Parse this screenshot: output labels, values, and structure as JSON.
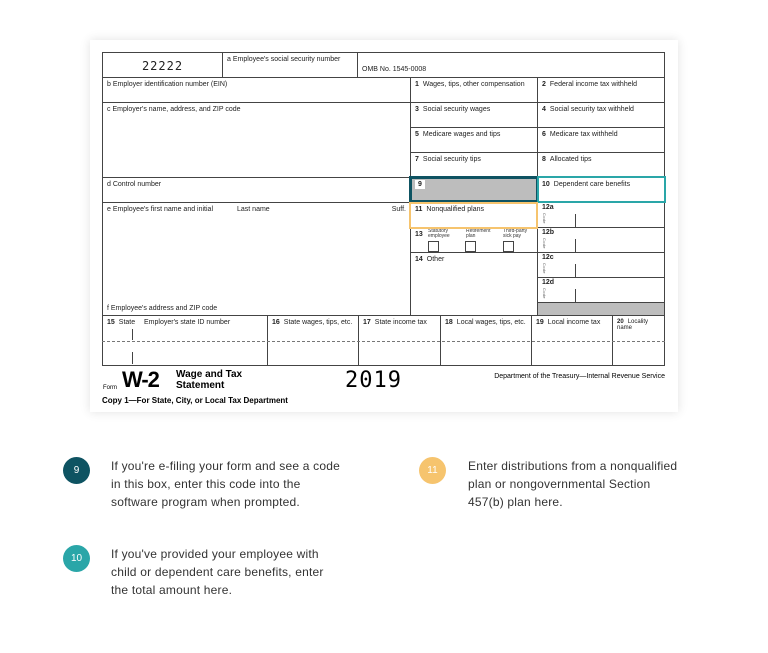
{
  "form": {
    "code": "22222",
    "a": "a  Employee's social security number",
    "omb": "OMB No. 1545-0008",
    "b": "b  Employer identification number (EIN)",
    "c": "c  Employer's name, address, and ZIP code",
    "d": "d  Control number",
    "e_first": "e  Employee's first name and initial",
    "e_last": "Last name",
    "e_suff": "Suff.",
    "f": "f  Employee's address and ZIP code",
    "boxes": {
      "b1": {
        "n": "1",
        "label": "Wages, tips, other compensation"
      },
      "b2": {
        "n": "2",
        "label": "Federal income tax withheld"
      },
      "b3": {
        "n": "3",
        "label": "Social security wages"
      },
      "b4": {
        "n": "4",
        "label": "Social security tax withheld"
      },
      "b5": {
        "n": "5",
        "label": "Medicare wages and tips"
      },
      "b6": {
        "n": "6",
        "label": "Medicare tax withheld"
      },
      "b7": {
        "n": "7",
        "label": "Social security tips"
      },
      "b8": {
        "n": "8",
        "label": "Allocated tips"
      },
      "b9": {
        "n": "9",
        "label": ""
      },
      "b10": {
        "n": "10",
        "label": "Dependent care benefits"
      },
      "b11": {
        "n": "11",
        "label": "Nonqualified plans"
      },
      "b12a": "12a",
      "b12b": "12b",
      "b12c": "12c",
      "b12d": "12d",
      "code_vert": "C o d e",
      "b13": {
        "n": "13",
        "statutory": "Statutory employee",
        "retirement": "Retirement plan",
        "thirdparty": "Third-party sick pay"
      },
      "b14": {
        "n": "14",
        "label": "Other"
      },
      "b15": {
        "n": "15",
        "label": "State",
        "id": "Employer's state ID number"
      },
      "b16": {
        "n": "16",
        "label": "State wages, tips, etc."
      },
      "b17": {
        "n": "17",
        "label": "State income tax"
      },
      "b18": {
        "n": "18",
        "label": "Local wages, tips, etc."
      },
      "b19": {
        "n": "19",
        "label": "Local income tax"
      },
      "b20": {
        "n": "20",
        "label": "Locality name"
      }
    },
    "footer": {
      "form_word": "Form",
      "form_name": "W-2",
      "title_1": "Wage and Tax",
      "title_2": "Statement",
      "year": "2019",
      "dept": "Department of the Treasury—Internal Revenue Service",
      "copy": "Copy 1—For State, City, or Local Tax Department"
    }
  },
  "callouts": [
    {
      "n": "9",
      "color": "#0e5362",
      "lines": [
        "If you're e-filing your form and see a code",
        "in this box, enter this code into the",
        "software program when prompted."
      ]
    },
    {
      "n": "10",
      "color": "#2aa6a8",
      "lines": [
        "If you've provided your employee with",
        "child or dependent care benefits, enter",
        "the total amount here."
      ]
    },
    {
      "n": "11",
      "color": "#f6c46e",
      "lines": [
        "Enter distributions from a nonqualified",
        "plan or nongovernmental Section",
        "457(b) plan here."
      ]
    }
  ]
}
